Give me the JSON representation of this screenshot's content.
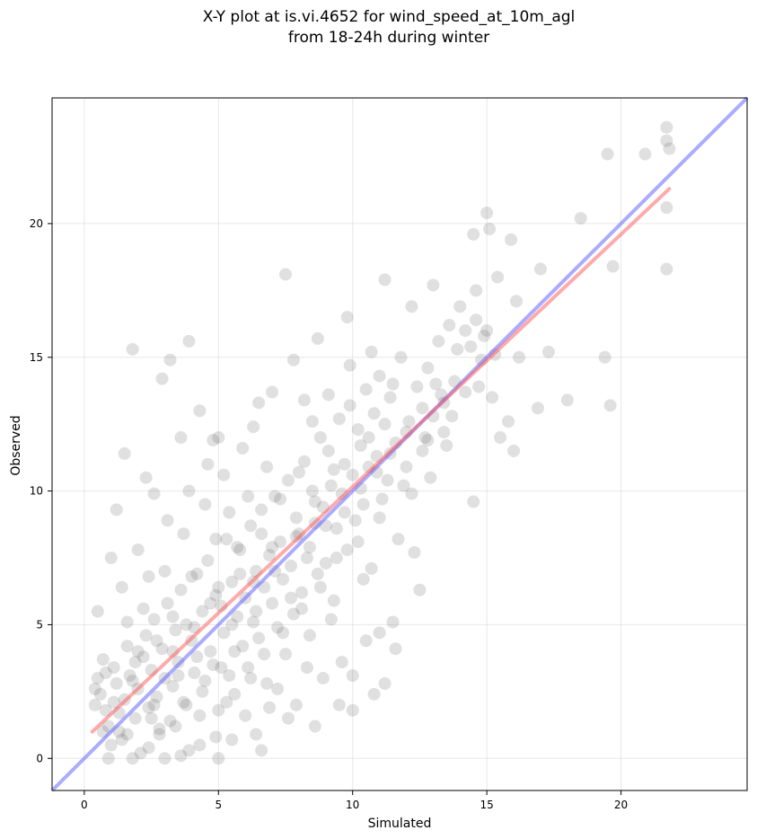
{
  "chart_data": {
    "type": "scatter",
    "title_line1": "X-Y plot at is.vi.4652 for wind_speed_at_10m_agl",
    "title_line2": "from 18-24h during winter",
    "xlabel": "Simulated",
    "ylabel": "Observed",
    "xlim": [
      -1.2,
      24.7
    ],
    "ylim": [
      -1.2,
      24.7
    ],
    "xticks": [
      0,
      5,
      10,
      15,
      20
    ],
    "yticks": [
      0,
      5,
      10,
      15,
      20
    ],
    "grid": true,
    "point_color": "#555555",
    "point_alpha": 0.18,
    "identity_line": {
      "x": [
        -1.2,
        24.7
      ],
      "y": [
        -1.2,
        24.7
      ],
      "color": "#6666ff",
      "alpha": 0.55
    },
    "fit_line": {
      "x": [
        0.3,
        21.8
      ],
      "y": [
        1.0,
        21.3
      ],
      "color": "#ff5555",
      "alpha": 0.5
    },
    "points": [
      [
        0.6,
        2.4
      ],
      [
        0.8,
        1.8
      ],
      [
        0.5,
        3.0
      ],
      [
        0.4,
        2.0
      ],
      [
        0.7,
        3.7
      ],
      [
        0.9,
        1.2
      ],
      [
        1.0,
        0.5
      ],
      [
        1.2,
        2.8
      ],
      [
        1.1,
        3.4
      ],
      [
        1.3,
        1.7
      ],
      [
        1.5,
        2.2
      ],
      [
        1.4,
        0.7
      ],
      [
        1.6,
        4.2
      ],
      [
        1.7,
        3.1
      ],
      [
        1.9,
        1.5
      ],
      [
        2.0,
        2.6
      ],
      [
        2.1,
        0.2
      ],
      [
        2.2,
        3.8
      ],
      [
        2.3,
        4.6
      ],
      [
        2.4,
        1.9
      ],
      [
        2.5,
        3.3
      ],
      [
        2.6,
        5.2
      ],
      [
        2.7,
        2.3
      ],
      [
        2.8,
        0.9
      ],
      [
        2.9,
        4.1
      ],
      [
        3.0,
        3.0
      ],
      [
        3.1,
        5.8
      ],
      [
        3.2,
        1.4
      ],
      [
        3.3,
        2.7
      ],
      [
        3.4,
        4.8
      ],
      [
        3.5,
        3.6
      ],
      [
        3.6,
        6.3
      ],
      [
        3.7,
        2.1
      ],
      [
        3.8,
        5.0
      ],
      [
        3.9,
        0.3
      ],
      [
        4.0,
        4.4
      ],
      [
        4.1,
        3.2
      ],
      [
        4.2,
        6.9
      ],
      [
        4.3,
        1.6
      ],
      [
        4.4,
        5.5
      ],
      [
        4.5,
        2.9
      ],
      [
        4.6,
        7.4
      ],
      [
        4.7,
        4.0
      ],
      [
        4.8,
        3.5
      ],
      [
        4.9,
        6.1
      ],
      [
        5.0,
        1.8
      ],
      [
        5.1,
        5.7
      ],
      [
        5.2,
        4.7
      ],
      [
        5.3,
        8.2
      ],
      [
        5.4,
        3.1
      ],
      [
        5.5,
        6.6
      ],
      [
        5.6,
        2.4
      ],
      [
        5.7,
        5.3
      ],
      [
        5.8,
        7.8
      ],
      [
        5.9,
        4.2
      ],
      [
        6.0,
        6.0
      ],
      [
        6.1,
        3.4
      ],
      [
        6.2,
        8.7
      ],
      [
        6.3,
        5.1
      ],
      [
        6.4,
        7.0
      ],
      [
        6.5,
        4.5
      ],
      [
        6.6,
        9.3
      ],
      [
        6.7,
        6.4
      ],
      [
        6.8,
        2.8
      ],
      [
        6.9,
        7.6
      ],
      [
        7.0,
        5.8
      ],
      [
        7.1,
        9.8
      ],
      [
        7.2,
        4.9
      ],
      [
        7.3,
        8.1
      ],
      [
        7.4,
        6.7
      ],
      [
        7.5,
        3.9
      ],
      [
        7.6,
        10.4
      ],
      [
        7.7,
        7.2
      ],
      [
        7.8,
        5.4
      ],
      [
        7.9,
        9.0
      ],
      [
        8.0,
        8.4
      ],
      [
        8.1,
        6.2
      ],
      [
        8.2,
        11.1
      ],
      [
        8.3,
        7.5
      ],
      [
        8.4,
        4.6
      ],
      [
        8.5,
        10.0
      ],
      [
        8.6,
        8.8
      ],
      [
        8.7,
        6.9
      ],
      [
        8.8,
        12.0
      ],
      [
        8.9,
        9.4
      ],
      [
        9.0,
        7.3
      ],
      [
        9.1,
        11.5
      ],
      [
        9.2,
        10.2
      ],
      [
        9.3,
        5.9
      ],
      [
        9.4,
        8.6
      ],
      [
        9.5,
        12.7
      ],
      [
        9.6,
        9.9
      ],
      [
        9.7,
        11.0
      ],
      [
        9.8,
        7.8
      ],
      [
        9.9,
        13.2
      ],
      [
        10.0,
        10.6
      ],
      [
        10.1,
        8.9
      ],
      [
        10.2,
        12.3
      ],
      [
        10.3,
        11.7
      ],
      [
        10.4,
        9.5
      ],
      [
        10.5,
        13.8
      ],
      [
        10.6,
        10.9
      ],
      [
        10.7,
        7.1
      ],
      [
        10.8,
        12.9
      ],
      [
        10.9,
        11.3
      ],
      [
        11.0,
        14.3
      ],
      [
        11.1,
        9.7
      ],
      [
        11.2,
        12.5
      ],
      [
        11.3,
        10.4
      ],
      [
        11.4,
        13.5
      ],
      [
        11.6,
        11.8
      ],
      [
        11.8,
        15.0
      ],
      [
        12.0,
        12.2
      ],
      [
        12.2,
        9.9
      ],
      [
        12.4,
        13.9
      ],
      [
        12.6,
        11.5
      ],
      [
        12.8,
        14.6
      ],
      [
        13.0,
        12.8
      ],
      [
        13.2,
        15.6
      ],
      [
        13.4,
        13.3
      ],
      [
        13.6,
        16.2
      ],
      [
        13.8,
        14.1
      ],
      [
        14.0,
        16.9
      ],
      [
        14.2,
        13.7
      ],
      [
        14.4,
        15.4
      ],
      [
        14.6,
        17.5
      ],
      [
        14.8,
        14.9
      ],
      [
        15.0,
        16.0
      ],
      [
        15.2,
        13.5
      ],
      [
        15.4,
        18.0
      ],
      [
        1.2,
        9.3
      ],
      [
        1.5,
        11.4
      ],
      [
        1.8,
        15.3
      ],
      [
        2.3,
        10.5
      ],
      [
        2.9,
        14.2
      ],
      [
        3.2,
        14.9
      ],
      [
        3.9,
        15.6
      ],
      [
        4.3,
        13.0
      ],
      [
        4.8,
        11.9
      ],
      [
        2.0,
        7.8
      ],
      [
        1.0,
        7.5
      ],
      [
        1.4,
        6.4
      ],
      [
        0.5,
        5.5
      ],
      [
        2.6,
        9.9
      ],
      [
        3.6,
        12.0
      ],
      [
        5.0,
        12.0
      ],
      [
        6.5,
        13.3
      ],
      [
        7.5,
        18.1
      ],
      [
        8.7,
        15.7
      ],
      [
        9.8,
        16.5
      ],
      [
        11.2,
        17.9
      ],
      [
        12.2,
        16.9
      ],
      [
        13.0,
        17.7
      ],
      [
        14.5,
        19.6
      ],
      [
        15.0,
        20.4
      ],
      [
        15.1,
        19.8
      ],
      [
        15.9,
        19.4
      ],
      [
        14.6,
        16.4
      ],
      [
        16.1,
        17.1
      ],
      [
        17.0,
        18.3
      ],
      [
        18.5,
        20.2
      ],
      [
        19.7,
        18.4
      ],
      [
        19.5,
        22.6
      ],
      [
        20.9,
        22.6
      ],
      [
        21.7,
        23.6
      ],
      [
        21.7,
        23.1
      ],
      [
        21.8,
        22.8
      ],
      [
        21.7,
        20.6
      ],
      [
        21.7,
        18.3
      ],
      [
        19.4,
        15.0
      ],
      [
        19.6,
        13.2
      ],
      [
        18.0,
        13.4
      ],
      [
        16.9,
        13.1
      ],
      [
        17.3,
        15.2
      ],
      [
        16.2,
        15.0
      ],
      [
        15.8,
        12.6
      ],
      [
        16.0,
        11.5
      ],
      [
        15.5,
        12.0
      ],
      [
        14.5,
        9.6
      ],
      [
        13.5,
        11.7
      ],
      [
        12.5,
        6.3
      ],
      [
        11.6,
        4.1
      ],
      [
        11.2,
        2.8
      ],
      [
        10.8,
        2.4
      ],
      [
        10.0,
        3.1
      ],
      [
        10.0,
        1.8
      ],
      [
        11.0,
        4.7
      ],
      [
        12.3,
        7.7
      ],
      [
        9.5,
        2.0
      ],
      [
        8.6,
        1.2
      ],
      [
        7.6,
        1.5
      ],
      [
        6.9,
        1.9
      ],
      [
        6.4,
        0.9
      ],
      [
        5.5,
        0.7
      ],
      [
        5.0,
        0.0
      ],
      [
        4.3,
        0.5
      ],
      [
        3.6,
        0.1
      ],
      [
        3.0,
        0.0
      ],
      [
        2.4,
        0.4
      ],
      [
        1.8,
        0.0
      ],
      [
        0.9,
        0.0
      ],
      [
        1.6,
        0.9
      ],
      [
        2.8,
        1.1
      ],
      [
        4.9,
        0.8
      ],
      [
        6.6,
        0.3
      ],
      [
        7.9,
        2.0
      ],
      [
        8.9,
        3.0
      ],
      [
        9.6,
        3.6
      ],
      [
        10.5,
        4.4
      ],
      [
        11.5,
        5.1
      ],
      [
        12.9,
        10.5
      ],
      [
        13.4,
        12.2
      ],
      [
        12.0,
        10.9
      ],
      [
        11.7,
        8.2
      ],
      [
        10.4,
        6.7
      ],
      [
        9.2,
        5.2
      ],
      [
        8.3,
        3.4
      ],
      [
        7.2,
        2.6
      ],
      [
        6.0,
        1.6
      ],
      [
        5.3,
        2.1
      ],
      [
        3.4,
        1.2
      ],
      [
        2.5,
        1.5
      ],
      [
        1.3,
        1.0
      ],
      [
        0.7,
        1.0
      ],
      [
        0.4,
        2.6
      ],
      [
        1.8,
        2.9
      ],
      [
        2.2,
        5.6
      ],
      [
        3.0,
        7.0
      ],
      [
        3.7,
        8.4
      ],
      [
        4.5,
        9.5
      ],
      [
        5.2,
        10.6
      ],
      [
        5.9,
        11.6
      ],
      [
        6.3,
        12.4
      ],
      [
        7.0,
        13.7
      ],
      [
        7.8,
        14.9
      ],
      [
        8.2,
        13.4
      ],
      [
        6.8,
        10.9
      ],
      [
        6.1,
        9.8
      ],
      [
        5.7,
        7.9
      ],
      [
        4.9,
        8.2
      ],
      [
        4.0,
        6.8
      ],
      [
        3.3,
        5.3
      ],
      [
        2.7,
        4.4
      ],
      [
        1.9,
        3.6
      ],
      [
        1.6,
        5.1
      ],
      [
        2.4,
        6.8
      ],
      [
        3.1,
        8.9
      ],
      [
        3.9,
        10.0
      ],
      [
        4.6,
        11.0
      ],
      [
        5.4,
        9.2
      ],
      [
        6.6,
        8.4
      ],
      [
        7.3,
        9.7
      ],
      [
        8.0,
        10.7
      ],
      [
        8.5,
        12.6
      ],
      [
        9.1,
        13.6
      ],
      [
        9.9,
        14.7
      ],
      [
        10.7,
        15.2
      ],
      [
        11.5,
        14.0
      ],
      [
        12.6,
        13.1
      ],
      [
        13.1,
        14.0
      ],
      [
        13.9,
        15.3
      ],
      [
        14.2,
        16.0
      ],
      [
        14.9,
        15.8
      ],
      [
        15.3,
        15.1
      ],
      [
        14.7,
        13.9
      ],
      [
        13.7,
        12.8
      ],
      [
        12.8,
        11.9
      ],
      [
        11.9,
        10.2
      ],
      [
        11.0,
        9.0
      ],
      [
        10.2,
        8.1
      ],
      [
        9.4,
        7.5
      ],
      [
        8.8,
        6.4
      ],
      [
        8.1,
        5.6
      ],
      [
        7.4,
        4.7
      ],
      [
        6.7,
        3.9
      ],
      [
        6.2,
        3.0
      ],
      [
        5.6,
        4.0
      ],
      [
        5.1,
        3.4
      ],
      [
        4.4,
        2.5
      ],
      [
        3.8,
        2.0
      ],
      [
        3.5,
        3.1
      ],
      [
        4.1,
        4.9
      ],
      [
        4.7,
        5.8
      ],
      [
        5.5,
        5.0
      ],
      [
        6.3,
        6.6
      ],
      [
        7.1,
        7.0
      ],
      [
        7.7,
        6.0
      ],
      [
        8.4,
        7.9
      ],
      [
        9.0,
        8.7
      ],
      [
        9.7,
        9.2
      ],
      [
        10.3,
        10.1
      ],
      [
        10.9,
        10.7
      ],
      [
        11.4,
        11.4
      ],
      [
        12.1,
        12.6
      ],
      [
        12.7,
        12.0
      ],
      [
        13.3,
        13.6
      ],
      [
        10.6,
        12.0
      ],
      [
        9.3,
        10.8
      ],
      [
        8.6,
        9.6
      ],
      [
        7.9,
        8.3
      ],
      [
        7.0,
        7.9
      ],
      [
        6.4,
        5.5
      ],
      [
        5.8,
        6.9
      ],
      [
        5.0,
        6.4
      ],
      [
        4.2,
        3.8
      ],
      [
        3.3,
        4.0
      ],
      [
        2.6,
        2.0
      ],
      [
        2.0,
        4.0
      ],
      [
        1.1,
        2.1
      ],
      [
        0.8,
        3.2
      ]
    ]
  }
}
